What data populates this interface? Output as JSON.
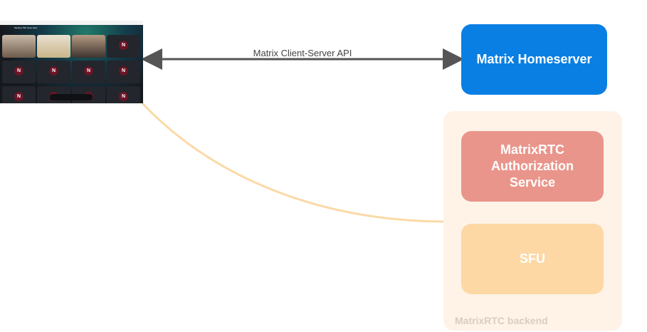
{
  "client_screenshot": {
    "meeting_title": "Meeting Title Goes Here",
    "avatar_letter": "N"
  },
  "api_label": "Matrix Client-Server API",
  "homeserver": {
    "label": "Matrix Homeserver",
    "color": "#0a7fe3"
  },
  "backend": {
    "label": "MatrixRTC backend",
    "color": "#fff3e8",
    "auth_service": {
      "label": "MatrixRTC Authorization Service",
      "color": "#ea958b"
    },
    "sfu": {
      "label": "SFU",
      "color": "#fdd8a4"
    }
  },
  "colors": {
    "arrow": "#555555",
    "connection": "#fbd9a6"
  }
}
